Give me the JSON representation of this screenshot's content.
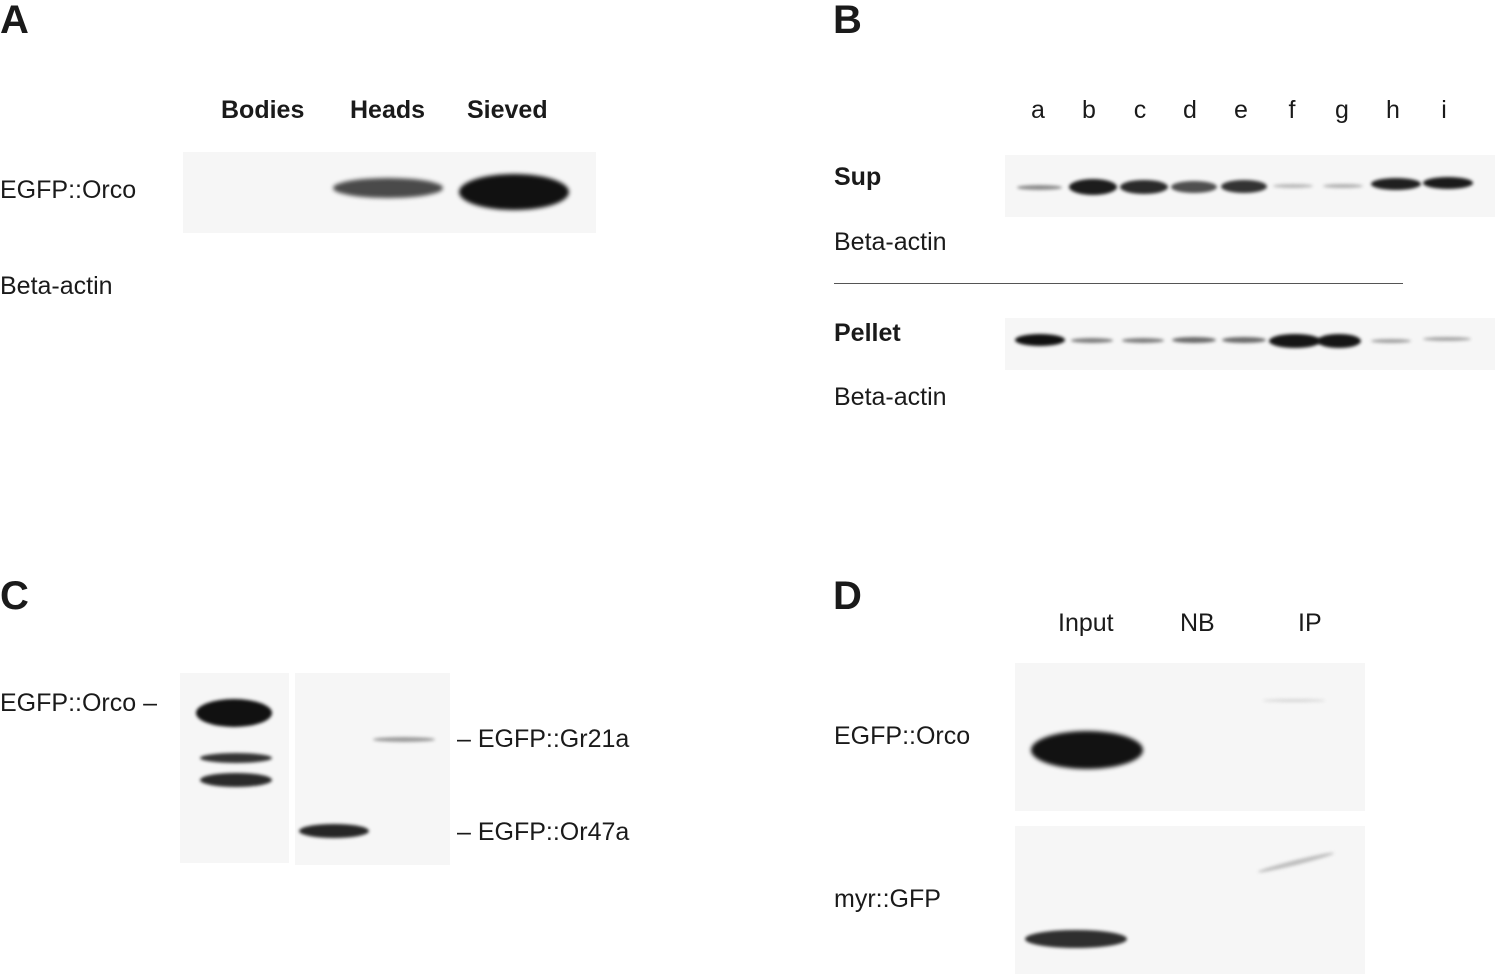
{
  "panels": {
    "A": {
      "letter": "A",
      "lanes": [
        "Bodies",
        "Heads",
        "Sieved"
      ],
      "rows": [
        "EGFP::Orco",
        "Beta-actin"
      ]
    },
    "B": {
      "letter": "B",
      "lanes": [
        "a",
        "b",
        "c",
        "d",
        "e",
        "f",
        "g",
        "h",
        "i"
      ],
      "sup_label": "Sup",
      "sup_sub": "Beta-actin",
      "pellet_label": "Pellet",
      "pellet_sub": "Beta-actin"
    },
    "C": {
      "letter": "C",
      "left_label": "EGFP::Orco –",
      "right_labels": [
        "– EGFP::Gr21a",
        "– EGFP::Or47a"
      ]
    },
    "D": {
      "letter": "D",
      "lanes": [
        "Input",
        "NB",
        "IP"
      ],
      "rows": [
        "EGFP::Orco",
        "myr::GFP"
      ]
    }
  }
}
